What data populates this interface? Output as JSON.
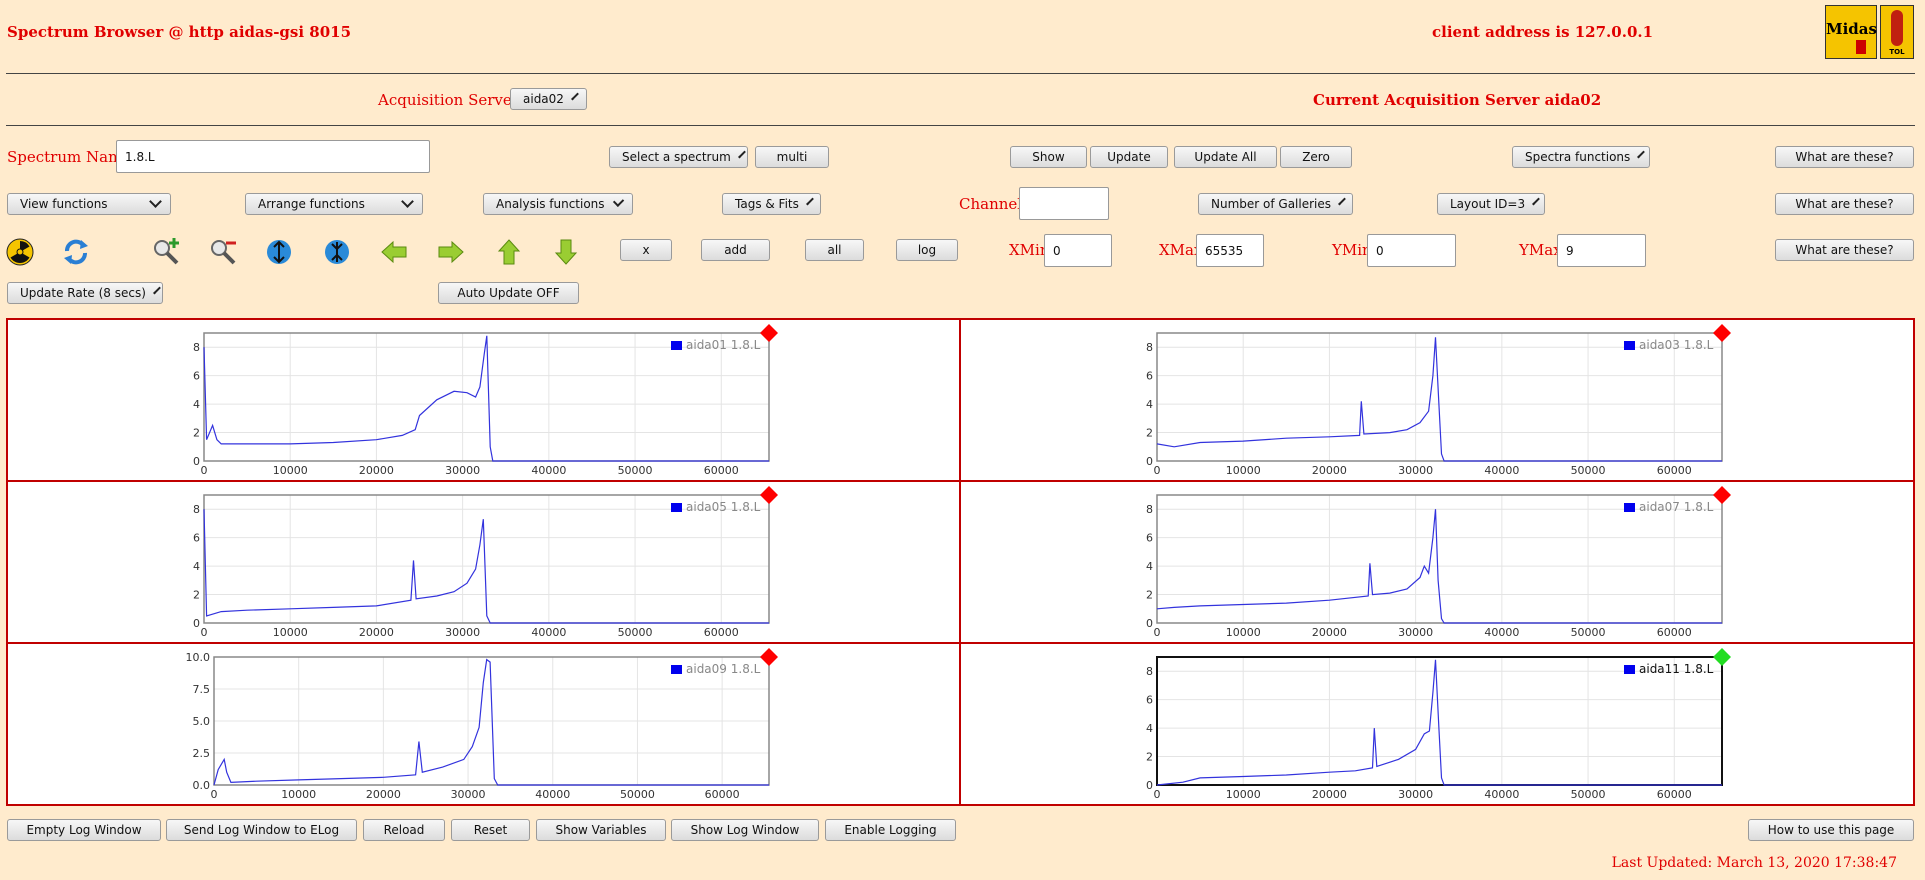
{
  "header": {
    "title": "Spectrum Browser @ http aidas-gsi 8015",
    "client": "client address is 127.0.0.1",
    "logo1": "Midas",
    "logo2": "TOL"
  },
  "servers": {
    "label": "Acquisition Servers",
    "selected": "aida02",
    "current": "Current Acquisition Server aida02"
  },
  "row1": {
    "spectrum_label": "Spectrum Name:",
    "spectrum_value": "1.8.L",
    "select_spectrum": "Select a spectrum",
    "multi": "multi",
    "show": "Show",
    "update": "Update",
    "update_all": "Update All",
    "zero": "Zero",
    "spectra_functions": "Spectra functions",
    "what": "What are these?"
  },
  "row2": {
    "view": "View functions",
    "arrange": "Arrange functions",
    "analysis": "Analysis functions",
    "tags": "Tags & Fits",
    "channel_label": "Channel:",
    "galleries": "Number of Galleries",
    "layout": "Layout ID=3",
    "what": "What are these?"
  },
  "row3": {
    "x": "x",
    "add": "add",
    "all": "all",
    "log": "log",
    "xmin_label": "XMin",
    "xmin": "0",
    "xmax_label": "XMax",
    "xmax": "65535",
    "ymin_label": "YMin",
    "ymin": "0",
    "ymax_label": "YMax",
    "ymax": "9",
    "what": "What are these?",
    "icons": [
      "radiation-icon",
      "refresh-icon",
      "zoom-in-icon",
      "zoom-out-icon",
      "expand-y-icon",
      "compress-y-icon",
      "arrow-left-icon",
      "arrow-right-icon",
      "arrow-up-icon",
      "arrow-down-icon"
    ]
  },
  "row4": {
    "update_rate": "Update Rate (8 secs)",
    "auto_update": "Auto Update OFF"
  },
  "colors": {
    "trace": "#3333dd",
    "alarm": "#ff0000",
    "ok": "#22dd22"
  },
  "chart_data": [
    {
      "type": "line",
      "legend": "aida01 1.8.L",
      "status": "red",
      "ylim": [
        0,
        9
      ],
      "yticks": [
        "0",
        "2",
        "4",
        "6",
        "8"
      ],
      "xlim": [
        0,
        65535
      ],
      "xticks": [
        "0",
        "10000",
        "20000",
        "30000",
        "40000",
        "50000",
        "60000"
      ],
      "x": [
        0,
        300,
        1000,
        1500,
        2000,
        5000,
        10000,
        15000,
        20000,
        23000,
        24500,
        25000,
        27000,
        29000,
        30500,
        31500,
        32000,
        32500,
        32800,
        33200,
        33500,
        40000,
        50000,
        60000,
        65535
      ],
      "y": [
        8,
        1.5,
        2.5,
        1.5,
        1.2,
        1.2,
        1.2,
        1.3,
        1.5,
        1.8,
        2.2,
        3.2,
        4.3,
        4.9,
        4.8,
        4.5,
        5.2,
        7.5,
        8.8,
        1.0,
        0,
        0,
        0,
        0,
        0
      ]
    },
    {
      "type": "line",
      "legend": "aida03 1.8.L",
      "status": "red",
      "ylim": [
        0,
        9
      ],
      "yticks": [
        "0",
        "2",
        "4",
        "6",
        "8"
      ],
      "xlim": [
        0,
        65535
      ],
      "xticks": [
        "0",
        "10000",
        "20000",
        "30000",
        "40000",
        "50000",
        "60000"
      ],
      "x": [
        0,
        2000,
        5000,
        10000,
        15000,
        20000,
        23500,
        23700,
        24000,
        27000,
        29000,
        30500,
        31500,
        32000,
        32300,
        32700,
        33000,
        33300,
        40000,
        50000,
        60000,
        65535
      ],
      "y": [
        1.2,
        1.0,
        1.3,
        1.4,
        1.6,
        1.7,
        1.8,
        4.2,
        1.9,
        2.0,
        2.2,
        2.7,
        3.5,
        6.0,
        8.7,
        4.0,
        0.5,
        0,
        0,
        0,
        0,
        0
      ]
    },
    {
      "type": "line",
      "legend": "aida05 1.8.L",
      "status": "red",
      "ylim": [
        0,
        9
      ],
      "yticks": [
        "0",
        "2",
        "4",
        "6",
        "8"
      ],
      "xlim": [
        0,
        65535
      ],
      "xticks": [
        "0",
        "10000",
        "20000",
        "30000",
        "40000",
        "50000",
        "60000"
      ],
      "x": [
        0,
        300,
        2000,
        5000,
        10000,
        15000,
        20000,
        24000,
        24300,
        24600,
        27000,
        29000,
        30500,
        31500,
        32000,
        32400,
        32800,
        33200,
        40000,
        50000,
        60000,
        65535
      ],
      "y": [
        8,
        0.5,
        0.8,
        0.9,
        1.0,
        1.1,
        1.2,
        1.6,
        4.4,
        1.7,
        1.9,
        2.2,
        2.8,
        3.8,
        5.5,
        7.3,
        0.5,
        0,
        0,
        0,
        0,
        0
      ]
    },
    {
      "type": "line",
      "legend": "aida07 1.8.L",
      "status": "red",
      "ylim": [
        0,
        9
      ],
      "yticks": [
        "0",
        "2",
        "4",
        "6",
        "8"
      ],
      "xlim": [
        0,
        65535
      ],
      "xticks": [
        "0",
        "10000",
        "20000",
        "30000",
        "40000",
        "50000",
        "60000"
      ],
      "x": [
        0,
        2000,
        5000,
        10000,
        15000,
        20000,
        24500,
        24700,
        25000,
        27000,
        29000,
        30500,
        31000,
        31500,
        32000,
        32300,
        32600,
        33000,
        33300,
        40000,
        50000,
        60000,
        65535
      ],
      "y": [
        1.0,
        1.1,
        1.2,
        1.3,
        1.4,
        1.6,
        1.9,
        4.2,
        2.0,
        2.1,
        2.4,
        3.2,
        4.0,
        3.5,
        6.0,
        8.0,
        3.0,
        0.3,
        0,
        0,
        0,
        0,
        0
      ]
    },
    {
      "type": "line",
      "legend": "aida09 1.8.L",
      "status": "red",
      "ylim": [
        0,
        10
      ],
      "yticks": [
        "0.0",
        "2.5",
        "5.0",
        "7.5",
        "10.0"
      ],
      "xlim": [
        0,
        65535
      ],
      "xticks": [
        "0",
        "10000",
        "20000",
        "30000",
        "40000",
        "50000",
        "60000"
      ],
      "x": [
        0,
        500,
        1200,
        1500,
        2000,
        5000,
        10000,
        15000,
        20000,
        23800,
        24200,
        24600,
        27000,
        29500,
        30500,
        31300,
        31800,
        32200,
        32600,
        33100,
        33500,
        40000,
        50000,
        60000,
        65535
      ],
      "y": [
        0,
        1.2,
        2.0,
        1.0,
        0.2,
        0.3,
        0.4,
        0.5,
        0.6,
        0.8,
        3.4,
        1.0,
        1.4,
        2.0,
        3.0,
        4.5,
        8.0,
        9.8,
        9.6,
        0.5,
        0,
        0,
        0,
        0,
        0
      ]
    },
    {
      "type": "line",
      "legend": "aida11 1.8.L",
      "status": "green",
      "ylim": [
        0,
        9
      ],
      "yticks": [
        "0",
        "2",
        "4",
        "6",
        "8"
      ],
      "xlim": [
        0,
        65535
      ],
      "xticks": [
        "0",
        "10000",
        "20000",
        "30000",
        "40000",
        "50000",
        "60000"
      ],
      "x": [
        0,
        3000,
        5000,
        10000,
        15000,
        20000,
        23000,
        25000,
        25200,
        25500,
        28000,
        30000,
        31000,
        31600,
        32000,
        32300,
        32700,
        33000,
        33300,
        40000,
        50000,
        60000,
        65535
      ],
      "y": [
        0,
        0.2,
        0.5,
        0.6,
        0.7,
        0.9,
        1.0,
        1.2,
        4.0,
        1.3,
        1.8,
        2.5,
        3.6,
        3.8,
        6.5,
        8.8,
        4.0,
        0.5,
        0,
        0,
        0,
        0,
        0
      ]
    }
  ],
  "footer": {
    "empty_log": "Empty Log Window",
    "send_log": "Send Log Window to ELog",
    "reload": "Reload",
    "reset": "Reset",
    "show_vars": "Show Variables",
    "show_log": "Show Log Window",
    "enable_logging": "Enable Logging",
    "how_to": "How to use this page",
    "last_updated": "Last Updated: March 13, 2020 17:38:47"
  }
}
